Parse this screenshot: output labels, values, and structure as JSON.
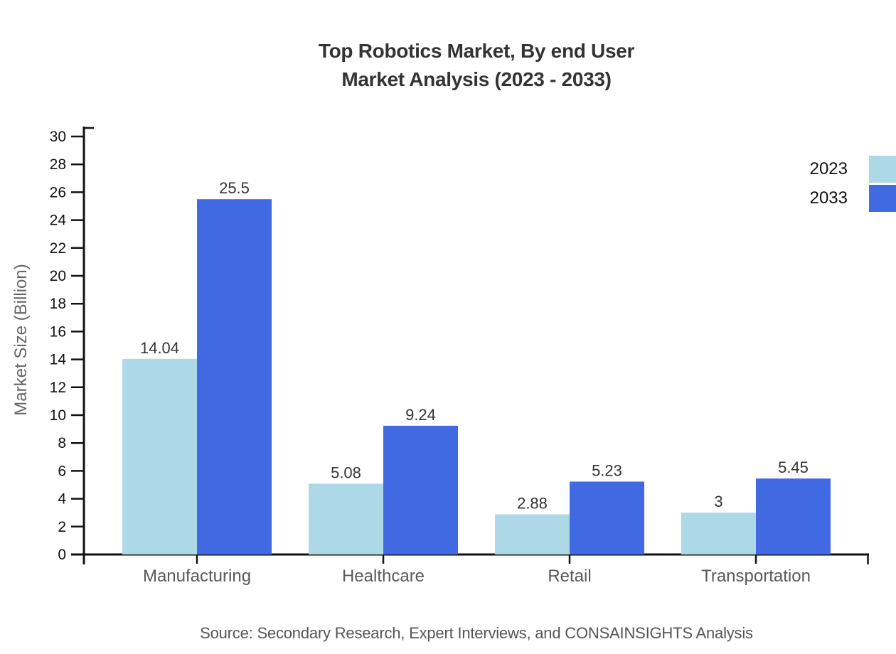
{
  "title": {
    "line1": "Top Robotics Market, By end User",
    "line2": "Market Analysis (2023 - 2033)"
  },
  "source": "Source: Secondary Research, Expert Interviews, and CONSAINSIGHTS Analysis",
  "chart_data": {
    "type": "bar",
    "title": "Top Robotics Market, By end User Market Analysis (2023 - 2033)",
    "categories": [
      "Manufacturing",
      "Healthcare",
      "Retail",
      "Transportation"
    ],
    "series": [
      {
        "name": "2023",
        "color": "#add8e6",
        "values": [
          14.04,
          5.08,
          2.88,
          3
        ]
      },
      {
        "name": "2033",
        "color": "#4169e1",
        "values": [
          25.5,
          9.24,
          5.23,
          5.45
        ]
      }
    ],
    "value_labels": [
      [
        "14.04",
        "5.08",
        "2.88",
        "3"
      ],
      [
        "25.5",
        "9.24",
        "5.23",
        "5.45"
      ]
    ],
    "xlabel": "",
    "ylabel": "Market Size (Billion)",
    "ylim": [
      0,
      30
    ],
    "ytick_step": 2,
    "yticks": [
      0,
      2,
      4,
      6,
      8,
      10,
      12,
      14,
      16,
      18,
      20,
      22,
      24,
      26,
      28,
      30
    ],
    "grid": false,
    "legend_position": "upper-right",
    "axis_color": "#111111",
    "tick_label_color": "#111111",
    "category_label_color": "#595959",
    "value_label_color": "#333333",
    "background_color": "#ffffff"
  }
}
